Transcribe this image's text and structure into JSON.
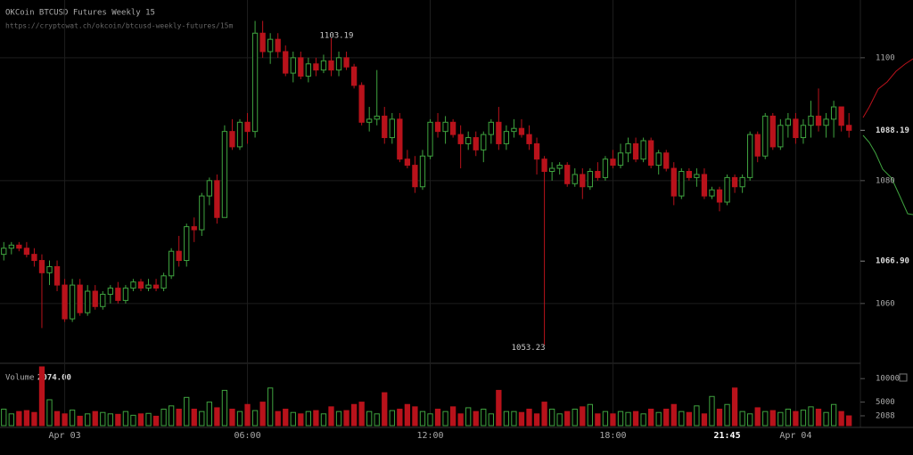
{
  "chart_data": {
    "type": "candlestick",
    "title": "OKCoin BTCUSD Futures Weekly 15",
    "subtitle": "https://cryptowat.ch/okcoin/btcusd-weekly-futures/15m",
    "up_color": "#3fa33f",
    "down_color": "#b8121b",
    "ylim": [
      1050.7,
      1109.4
    ],
    "yticks": [
      1100,
      1080,
      1060
    ],
    "price_markers": [
      {
        "value": 1088.19,
        "label": "1088.19"
      },
      {
        "value": 1066.9,
        "label": "1066.90"
      }
    ],
    "xlim": [
      -0.5,
      112.5
    ],
    "xticks": [
      {
        "value": 8,
        "label": "Apr 03"
      },
      {
        "value": 32,
        "label": "06:00"
      },
      {
        "value": 56,
        "label": "12:00"
      },
      {
        "value": 80,
        "label": "18:00"
      },
      {
        "value": 104,
        "label": "Apr 04"
      }
    ],
    "cursor_time": {
      "value": 95,
      "label": "21:45"
    },
    "annotations": [
      {
        "index": 43,
        "value": 1103.19,
        "label": "1103.19"
      },
      {
        "index": 71,
        "value": 1053.23,
        "label": "1053.23"
      }
    ],
    "candles": [
      [
        1068,
        1070,
        1067,
        1069
      ],
      [
        1069,
        1070,
        1068,
        1069.5
      ],
      [
        1069.5,
        1070,
        1068.5,
        1069
      ],
      [
        1069,
        1070,
        1067.5,
        1068
      ],
      [
        1068,
        1069,
        1066,
        1067
      ],
      [
        1067,
        1068,
        1056,
        1065
      ],
      [
        1065,
        1067,
        1063,
        1066
      ],
      [
        1066,
        1067,
        1062,
        1063
      ],
      [
        1063,
        1064,
        1057,
        1057.5
      ],
      [
        1057.5,
        1064,
        1057,
        1063
      ],
      [
        1063,
        1064,
        1058,
        1058.5
      ],
      [
        1058.5,
        1063,
        1058,
        1062
      ],
      [
        1062,
        1063,
        1059,
        1059.5
      ],
      [
        1059.5,
        1062,
        1059,
        1061.5
      ],
      [
        1061.5,
        1063,
        1060,
        1062.5
      ],
      [
        1062.5,
        1063.5,
        1060,
        1060.5
      ],
      [
        1060.5,
        1063,
        1060,
        1062.5
      ],
      [
        1062.5,
        1064,
        1062,
        1063.5
      ],
      [
        1063.5,
        1064,
        1062,
        1062.5
      ],
      [
        1062.5,
        1064,
        1062,
        1063
      ],
      [
        1063,
        1064,
        1062,
        1062.5
      ],
      [
        1062.5,
        1065,
        1062,
        1064.5
      ],
      [
        1064.5,
        1069,
        1064,
        1068.5
      ],
      [
        1068.5,
        1071,
        1066,
        1067
      ],
      [
        1067,
        1073,
        1066,
        1072.5
      ],
      [
        1072.5,
        1074,
        1070,
        1072
      ],
      [
        1072,
        1078,
        1071,
        1077.5
      ],
      [
        1077.5,
        1080.5,
        1076,
        1080
      ],
      [
        1080,
        1081,
        1073,
        1074
      ],
      [
        1074,
        1089,
        1074,
        1088
      ],
      [
        1088,
        1090,
        1085,
        1085.5
      ],
      [
        1085.5,
        1090,
        1085,
        1089.5
      ],
      [
        1089.5,
        1091,
        1086,
        1088
      ],
      [
        1088,
        1106,
        1087,
        1104
      ],
      [
        1104,
        1106,
        1100,
        1101
      ],
      [
        1101,
        1104,
        1099,
        1103
      ],
      [
        1103,
        1104,
        1100,
        1101
      ],
      [
        1101,
        1102,
        1097,
        1097.5
      ],
      [
        1097.5,
        1101,
        1096,
        1100
      ],
      [
        1100,
        1101,
        1096.5,
        1097
      ],
      [
        1097,
        1100,
        1096,
        1099
      ],
      [
        1099,
        1100,
        1097,
        1098
      ],
      [
        1098,
        1100.5,
        1097.5,
        1099.5
      ],
      [
        1099.5,
        1103.19,
        1097,
        1098
      ],
      [
        1098,
        1101,
        1097,
        1100
      ],
      [
        1100,
        1101,
        1098,
        1098.5
      ],
      [
        1098.5,
        1099,
        1095,
        1095.5
      ],
      [
        1095.5,
        1096,
        1089,
        1089.5
      ],
      [
        1089.5,
        1092,
        1088,
        1090
      ],
      [
        1090,
        1098,
        1089,
        1090.5
      ],
      [
        1090.5,
        1092,
        1086,
        1087
      ],
      [
        1087,
        1091,
        1086,
        1090
      ],
      [
        1090,
        1091,
        1083,
        1083.5
      ],
      [
        1083.5,
        1085,
        1082,
        1082.5
      ],
      [
        1082.5,
        1084,
        1078,
        1079
      ],
      [
        1079,
        1085,
        1078.5,
        1084
      ],
      [
        1084,
        1090,
        1083.5,
        1089.5
      ],
      [
        1089.5,
        1091,
        1087,
        1088
      ],
      [
        1088,
        1090.5,
        1086,
        1089.5
      ],
      [
        1089.5,
        1090,
        1087,
        1087.5
      ],
      [
        1087.5,
        1089,
        1082,
        1086
      ],
      [
        1086,
        1088,
        1085,
        1087
      ],
      [
        1087,
        1088,
        1084,
        1085
      ],
      [
        1085,
        1088,
        1083,
        1087.5
      ],
      [
        1087.5,
        1090,
        1086,
        1089.5
      ],
      [
        1089.5,
        1092,
        1085,
        1086
      ],
      [
        1086,
        1089,
        1085,
        1088
      ],
      [
        1088,
        1090,
        1087,
        1088.5
      ],
      [
        1088.5,
        1090,
        1087,
        1087.5
      ],
      [
        1087.5,
        1089,
        1085,
        1086
      ],
      [
        1086,
        1087,
        1081,
        1083.5
      ],
      [
        1083.5,
        1084,
        1053.23,
        1081.5
      ],
      [
        1081.5,
        1083,
        1080,
        1082
      ],
      [
        1082,
        1083,
        1081,
        1082.5
      ],
      [
        1082.5,
        1083,
        1079,
        1079.5
      ],
      [
        1079.5,
        1082,
        1079,
        1081
      ],
      [
        1081,
        1082,
        1077,
        1079
      ],
      [
        1079,
        1082,
        1078.5,
        1081.5
      ],
      [
        1081.5,
        1083,
        1080,
        1080.5
      ],
      [
        1080.5,
        1084,
        1080,
        1083.5
      ],
      [
        1083.5,
        1085,
        1082,
        1082.5
      ],
      [
        1082.5,
        1086,
        1082,
        1084.5
      ],
      [
        1084.5,
        1087,
        1083,
        1086
      ],
      [
        1086,
        1087,
        1083,
        1083.5
      ],
      [
        1083.5,
        1087,
        1083,
        1086.5
      ],
      [
        1086.5,
        1087,
        1082,
        1082.5
      ],
      [
        1082.5,
        1085,
        1081,
        1084.5
      ],
      [
        1084.5,
        1085,
        1081.5,
        1082
      ],
      [
        1082,
        1083,
        1076,
        1077.5
      ],
      [
        1077.5,
        1082,
        1077,
        1081.5
      ],
      [
        1081.5,
        1082,
        1080,
        1080.5
      ],
      [
        1080.5,
        1082,
        1079,
        1081
      ],
      [
        1081,
        1082,
        1077,
        1077.5
      ],
      [
        1077.5,
        1079,
        1077,
        1078.5
      ],
      [
        1078.5,
        1079,
        1075,
        1076.5
      ],
      [
        1076.5,
        1081,
        1076,
        1080.5
      ],
      [
        1080.5,
        1081,
        1078,
        1079
      ],
      [
        1079,
        1081,
        1078,
        1080.5
      ],
      [
        1080.5,
        1088,
        1080,
        1087.5
      ],
      [
        1087.5,
        1088,
        1083,
        1084
      ],
      [
        1084,
        1091,
        1083.5,
        1090.5
      ],
      [
        1090.5,
        1091,
        1085,
        1085.5
      ],
      [
        1085.5,
        1090,
        1085,
        1089
      ],
      [
        1089,
        1091,
        1087,
        1090
      ],
      [
        1090,
        1091,
        1086,
        1087
      ],
      [
        1087,
        1090,
        1086,
        1089
      ],
      [
        1089,
        1093,
        1087,
        1090.5
      ],
      [
        1090.5,
        1095,
        1088,
        1089
      ],
      [
        1089,
        1091,
        1087,
        1090
      ],
      [
        1090,
        1093,
        1087,
        1092
      ],
      [
        1092,
        1092,
        1088,
        1089
      ],
      [
        1089,
        1091,
        1087,
        1088.19
      ]
    ],
    "volume_title": "Volume",
    "volume_value": {
      "value": 2074,
      "label": "2074.00"
    },
    "volume_ylim": [
      0,
      12500
    ],
    "volume_yticks": [
      10000,
      5000,
      2088
    ],
    "volumes": [
      3500,
      2500,
      3000,
      3200,
      2800,
      12500,
      5500,
      3000,
      2500,
      3300,
      2000,
      2500,
      3000,
      2800,
      2500,
      2400,
      3000,
      2200,
      2500,
      2600,
      2000,
      3500,
      4200,
      3500,
      6000,
      3500,
      3000,
      5000,
      3800,
      7500,
      3500,
      3000,
      4500,
      3200,
      5000,
      8000,
      3000,
      3500,
      2800,
      2500,
      3000,
      3200,
      2500,
      4000,
      3000,
      3200,
      4500,
      5000,
      3000,
      2500,
      7000,
      3200,
      3500,
      4500,
      4000,
      3000,
      2500,
      3500,
      3000,
      4000,
      2500,
      3800,
      3000,
      3500,
      2500,
      7500,
      3000,
      3000,
      2800,
      3500,
      2500,
      5000,
      3500,
      2500,
      3000,
      3500,
      4000,
      4500,
      2500,
      3000,
      2500,
      3000,
      2800,
      3000,
      2500,
      3500,
      2800,
      3500,
      4500,
      3000,
      2800,
      4200,
      2500,
      6200,
      3500,
      4500,
      8000,
      3000,
      2500,
      3800,
      3000,
      3200,
      2800,
      3500,
      3000,
      3300,
      4000,
      3500,
      2800,
      4500,
      3000,
      2074
    ]
  }
}
